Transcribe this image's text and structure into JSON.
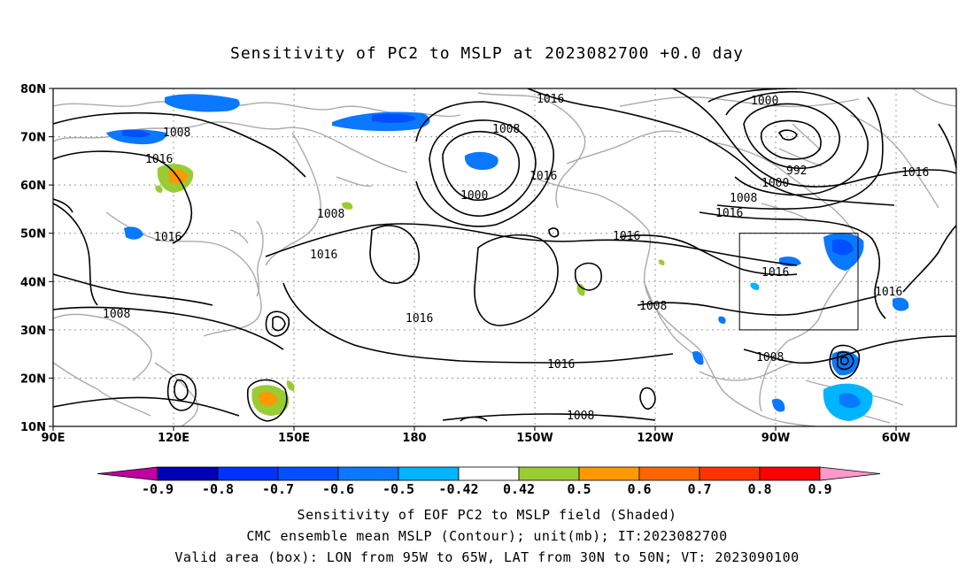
{
  "title": "Sensitivity of PC2 to MSLP at 2023082700 +0.0 day",
  "map": {
    "lat_labels": [
      "80N",
      "70N",
      "60N",
      "50N",
      "40N",
      "30N",
      "20N",
      "10N"
    ],
    "lon_labels": [
      "90E",
      "120E",
      "150E",
      "180",
      "150W",
      "120W",
      "90W",
      "60W"
    ],
    "valid_box": {
      "lon_min": -95,
      "lon_max": -65,
      "lat_min": 30,
      "lat_max": 50
    },
    "contour_labels": [
      {
        "text": "1016",
        "id": "c1"
      },
      {
        "text": "1000",
        "id": "c2"
      },
      {
        "text": "1008",
        "id": "c3"
      },
      {
        "text": "1016",
        "id": "c4"
      },
      {
        "text": "1008",
        "id": "c5"
      },
      {
        "text": "1016",
        "id": "c6"
      },
      {
        "text": "1000",
        "id": "c7"
      },
      {
        "text": "1016",
        "id": "c8"
      },
      {
        "text": "1008",
        "id": "c9"
      },
      {
        "text": "1016",
        "id": "c10"
      },
      {
        "text": "1016",
        "id": "c11"
      },
      {
        "text": "1016",
        "id": "c12"
      },
      {
        "text": "992",
        "id": "c13"
      },
      {
        "text": "1000",
        "id": "c14"
      },
      {
        "text": "1008",
        "id": "c15"
      },
      {
        "text": "1016",
        "id": "c16"
      },
      {
        "text": "1016",
        "id": "c17"
      },
      {
        "text": "1016",
        "id": "c18"
      },
      {
        "text": "1016",
        "id": "c19"
      },
      {
        "text": "1008",
        "id": "c20"
      },
      {
        "text": "1016",
        "id": "c21"
      },
      {
        "text": "1008",
        "id": "c22"
      },
      {
        "text": "1008",
        "id": "c23"
      },
      {
        "text": "1008",
        "id": "c24"
      },
      {
        "text": "1016",
        "id": "c25"
      }
    ]
  },
  "colorbar": {
    "labels": [
      "-0.9",
      "-0.8",
      "-0.7",
      "-0.6",
      "-0.5",
      "-0.42",
      "0.42",
      "0.5",
      "0.6",
      "0.7",
      "0.8",
      "0.9"
    ],
    "colors": [
      "#c000a0",
      "#0000b4",
      "#0033ff",
      "#0050ff",
      "#0a78ff",
      "#00b4ff",
      "#ffffff",
      "#99cc33",
      "#ff9900",
      "#ff6600",
      "#ff3300",
      "#ff0000",
      "#ff99cc"
    ]
  },
  "footer": {
    "line1": "Sensitivity of EOF PC2 to MSLP field (Shaded)",
    "line2": "CMC ensemble mean MSLP (Contour); unit(mb); IT:2023082700",
    "line3": "Valid area (box): LON from 95W to 65W, LAT from 30N to 50N; VT: 2023090100"
  }
}
